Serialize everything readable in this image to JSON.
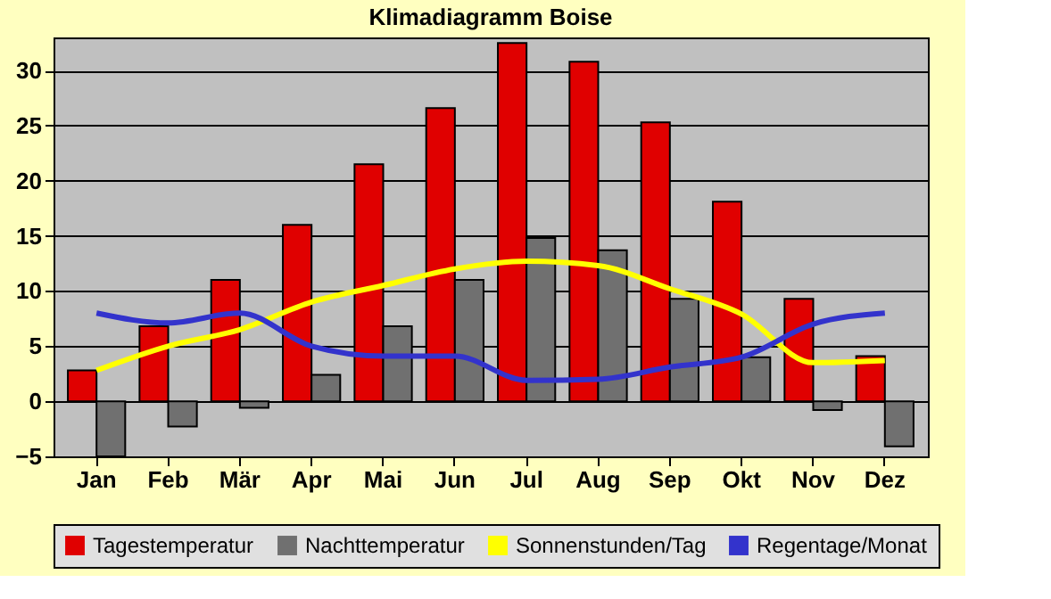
{
  "chart_data": {
    "type": "bar",
    "title": "Klimadiagramm Boise",
    "categories": [
      "Jan",
      "Feb",
      "Mär",
      "Apr",
      "Mai",
      "Jun",
      "Jul",
      "Aug",
      "Sep",
      "Okt",
      "Nov",
      "Dez"
    ],
    "series": [
      {
        "name": "Tagestemperatur",
        "color": "#e00000",
        "values": [
          2.8,
          6.8,
          11,
          16,
          21.5,
          26.6,
          32.5,
          30.8,
          25.3,
          18.1,
          9.3,
          4.1
        ]
      },
      {
        "name": "Nachttemperatur",
        "color": "#707070",
        "values": [
          -5.0,
          -2.3,
          -0.6,
          2.4,
          6.8,
          11,
          14.8,
          13.7,
          9.3,
          4.0,
          -0.8,
          -4.1
        ]
      },
      {
        "name": "Sonnenstunden/Tag",
        "type": "line",
        "color": "#ffff00",
        "values": [
          2.8,
          5,
          6.5,
          9,
          10.5,
          12,
          12.7,
          12.3,
          10.2,
          7.9,
          3.5,
          3.7
        ]
      },
      {
        "name": "Regentage/Monat",
        "type": "line",
        "color": "#3333cc",
        "values": [
          8,
          7.1,
          8,
          5,
          4.1,
          4.1,
          1.9,
          2.0,
          3.1,
          4.0,
          7.0,
          8.0
        ]
      }
    ],
    "ylim": [
      -5,
      33
    ],
    "yticks": [
      -5,
      0,
      5,
      10,
      15,
      20,
      25,
      30
    ],
    "grid": "y",
    "legend": "bottom"
  }
}
